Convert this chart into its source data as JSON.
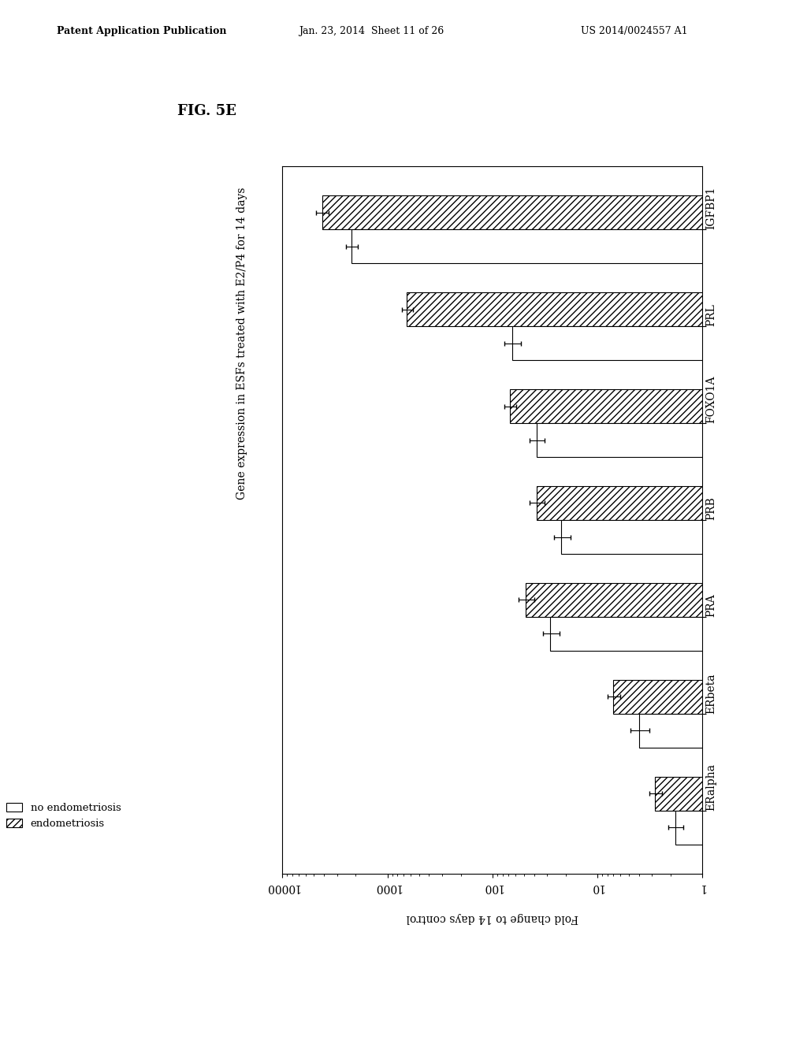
{
  "title": "FIG. 5E",
  "subtitle": "Gene expression in ESFs treated with E2/P4 for 14 days",
  "xlabel": "Fold change to 14 days control",
  "categories": [
    "ERalpha",
    "ERbeta",
    "PRA",
    "PRB",
    "FOXO1A",
    "PRL",
    "IGFBP1"
  ],
  "no_endo_values": [
    1.8,
    4.0,
    28,
    22,
    38,
    65,
    2200
  ],
  "endo_values": [
    2.8,
    7.0,
    48,
    38,
    68,
    650,
    4200
  ],
  "no_endo_errors": [
    0.3,
    0.8,
    5,
    4,
    6,
    12,
    300
  ],
  "endo_errors": [
    0.4,
    1.0,
    8,
    6,
    9,
    80,
    600
  ],
  "legend_no_endo": "no endometriosis",
  "legend_endo": "endometriosis",
  "xlim_left": 1,
  "xlim_right": 10000,
  "background_color": "#ffffff",
  "bar_height": 0.35,
  "header_left": "Patent Application Publication",
  "header_mid": "Jan. 23, 2014  Sheet 11 of 26",
  "header_right": "US 2014/0024557 A1"
}
